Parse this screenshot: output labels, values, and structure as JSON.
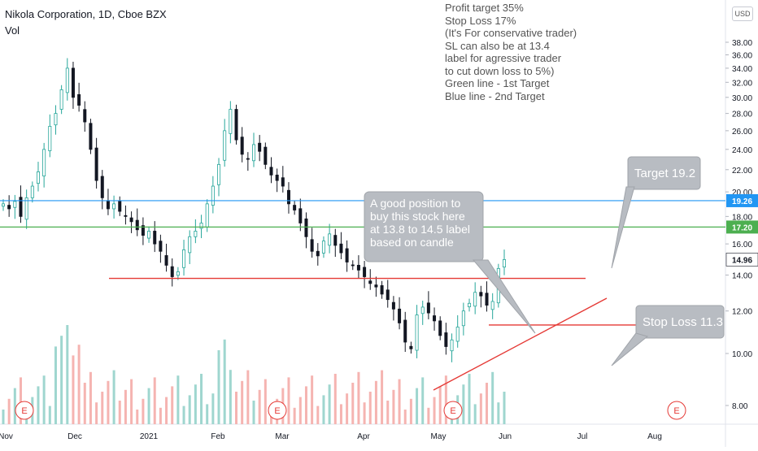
{
  "header": {
    "symbol_title": "Nikola Corporation, 1D, Cboe BZX",
    "volume_label": "Vol",
    "currency_badge": "USD"
  },
  "notes": [
    "Profit target 35%",
    "Stop Loss 17%",
    "(It's For conservative trader)",
    "SL can also be at 13.4",
    "label for agressive trader",
    "to cut down loss to 5%)",
    "Green line - 1st Target",
    "Blue line - 2nd Target"
  ],
  "callouts": {
    "position": [
      "A good position to",
      "buy this stock here",
      "at 13.8 to 14.5 label",
      "based on candle"
    ],
    "target": "Target 19.2",
    "stop_loss": "Stop Loss 11.3"
  },
  "colors": {
    "up": "#26a69a",
    "down": "#131722",
    "vol_up": "#9fd6cf",
    "vol_down": "#f5b4b1",
    "blue_line": "#2196f3",
    "green_line": "#4caf50",
    "red_line": "#e53935",
    "callout_bg": "#b8bcc2",
    "earnings": "#e53935"
  },
  "chart_data": {
    "type": "candlestick",
    "title": "Nikola Corporation, 1D, Cboe BZX",
    "x_axis": {
      "tick_labels": [
        "Nov",
        "Dec",
        "2021",
        "Feb",
        "Mar",
        "Apr",
        "May",
        "Jun",
        "Jul",
        "Aug"
      ]
    },
    "y_axis": {
      "scale": "log",
      "range": [
        7.3,
        39.0
      ],
      "tick_labels": [
        "8.00",
        "10.00",
        "12.00",
        "14.00",
        "16.00",
        "18.00",
        "20.00",
        "22.00",
        "24.00",
        "26.00",
        "28.00",
        "30.00",
        "32.00",
        "34.00",
        "36.00",
        "38.00"
      ],
      "price_badges": [
        {
          "value": "19.26",
          "color": "#2196f3"
        },
        {
          "value": "17.20",
          "color": "#4caf50"
        },
        {
          "value": "14.96",
          "color": "#ffffff"
        }
      ]
    },
    "horizontal_lines": [
      {
        "name": "2nd Target",
        "value": 19.26,
        "color": "#2196f3"
      },
      {
        "name": "1st Target",
        "value": 17.2,
        "color": "#4caf50"
      },
      {
        "name": "support",
        "value": 13.8,
        "color": "#e53935"
      },
      {
        "name": "stop loss",
        "value": 11.3,
        "color": "#e53935"
      }
    ],
    "last_price": 14.96,
    "earnings_markers": [
      "E",
      "E",
      "E",
      "E"
    ],
    "series": [
      {
        "name": "Vol",
        "ohlc_closes_approx": [
          19.0,
          18.6,
          19.2,
          18.0,
          19.5,
          20.5,
          21.8,
          24.0,
          26.5,
          28.0,
          31.0,
          34.0,
          30.0,
          29.0,
          27.0,
          24.0,
          21.0,
          19.5,
          18.6,
          19.0,
          18.4,
          18.0,
          17.6,
          17.0,
          16.6,
          16.9,
          16.0,
          15.5,
          14.6,
          13.9,
          14.2,
          15.6,
          16.5,
          16.9,
          17.5,
          19.0,
          20.5,
          22.5,
          26.0,
          28.5,
          25.0,
          23.5,
          23.0,
          24.5,
          23.8,
          22.5,
          21.5,
          21.0,
          20.5,
          19.0,
          18.5,
          17.5,
          16.5,
          15.5,
          15.2,
          16.2,
          16.7,
          15.9,
          15.4,
          14.8,
          14.6,
          14.3,
          13.9,
          13.5,
          13.3,
          12.9,
          12.6,
          12.1,
          11.4,
          10.5,
          10.2,
          11.8,
          12.2,
          11.9,
          11.5,
          10.8,
          10.3,
          10.6,
          11.2,
          12.0,
          12.4,
          13.0,
          12.8,
          12.3,
          12.5,
          14.4,
          14.96
        ]
      }
    ]
  }
}
